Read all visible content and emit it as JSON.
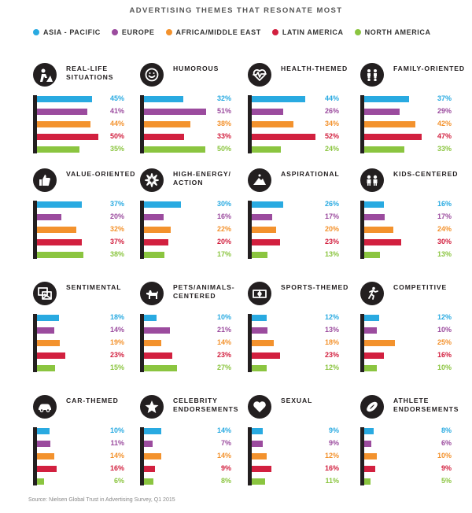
{
  "title": "ADVERTISING THEMES THAT RESONATE MOST",
  "source": "Source: Nielsen Global Trust in Advertising Survey, Q1 2015",
  "colors": {
    "asia_pacific": "#29aae1",
    "europe": "#9b4b9e",
    "africa_middle_east": "#f3922d",
    "latin_america": "#d2203f",
    "north_america": "#8bc540"
  },
  "legend": [
    {
      "label": "ASIA - PACIFIC",
      "color": "#29aae1"
    },
    {
      "label": "EUROPE",
      "color": "#9b4b9e"
    },
    {
      "label": "AFRICA/MIDDLE EAST",
      "color": "#f3922d"
    },
    {
      "label": "LATIN AMERICA",
      "color": "#d2203f"
    },
    {
      "label": "NORTH AMERICA",
      "color": "#8bc540"
    }
  ],
  "chart_data": {
    "type": "bar",
    "orientation": "horizontal",
    "series_names": [
      "ASIA - PACIFIC",
      "EUROPE",
      "AFRICA/MIDDLE EAST",
      "LATIN AMERICA",
      "NORTH AMERICA"
    ],
    "unit": "%",
    "panels": [
      {
        "title": "REAL-LIFE SITUATIONS",
        "icon": "construction-worker-icon",
        "values": [
          45,
          41,
          44,
          50,
          35
        ]
      },
      {
        "title": "HUMOROUS",
        "icon": "smiley-face-icon",
        "values": [
          32,
          51,
          38,
          33,
          50
        ]
      },
      {
        "title": "HEALTH-THEMED",
        "icon": "heartbeat-icon",
        "values": [
          44,
          26,
          34,
          52,
          24
        ]
      },
      {
        "title": "FAMILY-ORIENTED",
        "icon": "family-icon",
        "values": [
          37,
          29,
          42,
          47,
          33
        ]
      },
      {
        "title": "VALUE-ORIENTED",
        "icon": "thumbs-up-icon",
        "values": [
          37,
          20,
          32,
          37,
          38
        ]
      },
      {
        "title": "HIGH-ENERGY/ ACTION",
        "icon": "burst-icon",
        "values": [
          30,
          16,
          22,
          20,
          17
        ]
      },
      {
        "title": "ASPIRATIONAL",
        "icon": "mountain-icon",
        "values": [
          26,
          17,
          20,
          23,
          13
        ]
      },
      {
        "title": "KIDS-CENTERED",
        "icon": "kids-icon",
        "values": [
          16,
          17,
          24,
          30,
          13
        ]
      },
      {
        "title": "SENTIMENTAL",
        "icon": "photos-icon",
        "values": [
          18,
          14,
          19,
          23,
          15
        ]
      },
      {
        "title": "PETS/ANIMALS-CENTERED",
        "icon": "dog-icon",
        "values": [
          10,
          21,
          14,
          23,
          27
        ]
      },
      {
        "title": "SPORTS-THEMED",
        "icon": "sports-field-icon",
        "values": [
          12,
          13,
          18,
          23,
          12
        ]
      },
      {
        "title": "COMPETITIVE",
        "icon": "running-figures-icon",
        "values": [
          12,
          10,
          25,
          16,
          10
        ]
      },
      {
        "title": "CAR-THEMED",
        "icon": "car-icon",
        "values": [
          10,
          11,
          14,
          16,
          6
        ]
      },
      {
        "title": "CELEBRITY ENDORSEMENTS",
        "icon": "star-icon",
        "values": [
          14,
          7,
          14,
          9,
          8
        ]
      },
      {
        "title": "SEXUAL",
        "icon": "heart-icon",
        "values": [
          9,
          9,
          12,
          16,
          11
        ]
      },
      {
        "title": "ATHLETE ENDORSEMENTS",
        "icon": "football-icon",
        "values": [
          8,
          6,
          10,
          9,
          5
        ]
      }
    ]
  }
}
